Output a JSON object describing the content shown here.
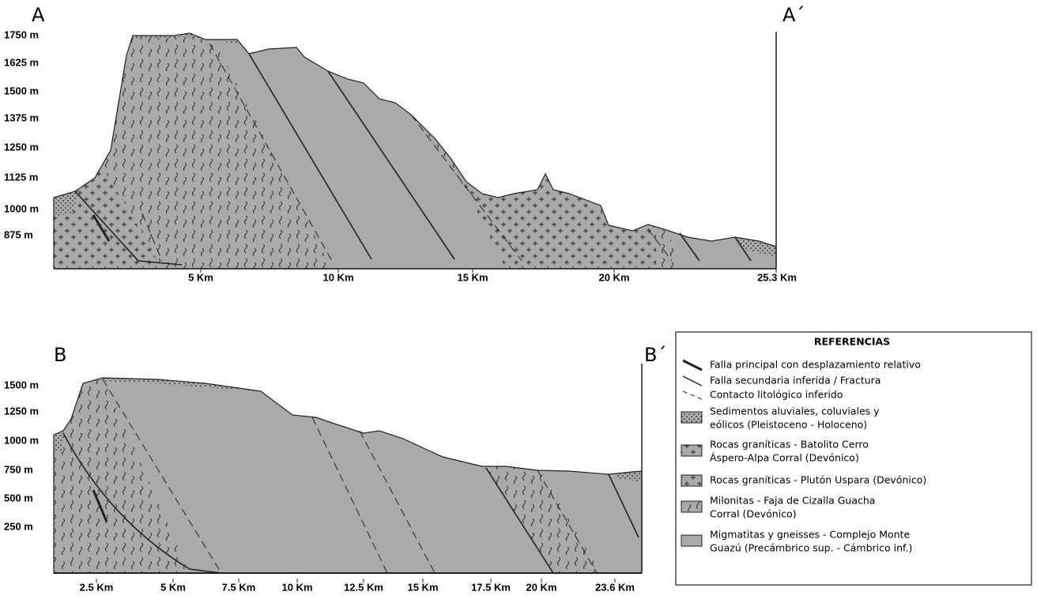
{
  "sections": [
    {
      "start_label": "A",
      "end_label": "A´",
      "y_axis": [
        "1750 m",
        "1625 m",
        "1500 m",
        "1375 m",
        "1250 m",
        "1125 m",
        "1000 m",
        "875 m"
      ],
      "x_axis": [
        "5 Km",
        "10 Km",
        "15 Km",
        "20 Km",
        "25.3 Km"
      ]
    },
    {
      "start_label": "B",
      "end_label": "B´",
      "y_axis": [
        "1500 m",
        "1250 m",
        "1000 m",
        "750 m",
        "500 m",
        "250 m"
      ],
      "x_axis": [
        "2.5 Km",
        "5 Km",
        "7.5 Km",
        "10 Km",
        "12.5 Km",
        "15 Km",
        "17.5 Km",
        "20 Km",
        "23.6 Km"
      ]
    }
  ],
  "legend": {
    "title": "REFERENCIAS",
    "items": [
      {
        "lines": [
          "Falla principal con desplazamiento relativo"
        ]
      },
      {
        "lines": [
          "Falla secundaria inferida / Fractura"
        ]
      },
      {
        "lines": [
          "Contacto litológico inferido"
        ]
      },
      {
        "lines": [
          "Sedimentos aluviales, coluviales y",
          "eólicos (Pleistoceno - Holoceno)"
        ]
      },
      {
        "lines": [
          "Rocas graníticas - Batolito Cerro",
          "Áspero-Alpa Corral (Devónico)"
        ]
      },
      {
        "lines": [
          "Rocas graníticas - Plutón Uspara (Devónico)"
        ]
      },
      {
        "lines": [
          "Milonitas - Faja de Cizalla Guacha",
          "Corral (Devónico)"
        ]
      },
      {
        "lines": [
          "Migmatitas y gneisses - Complejo Monte",
          "Guazú (Precámbrico sup. - Cámbrico inf.)"
        ]
      }
    ]
  }
}
